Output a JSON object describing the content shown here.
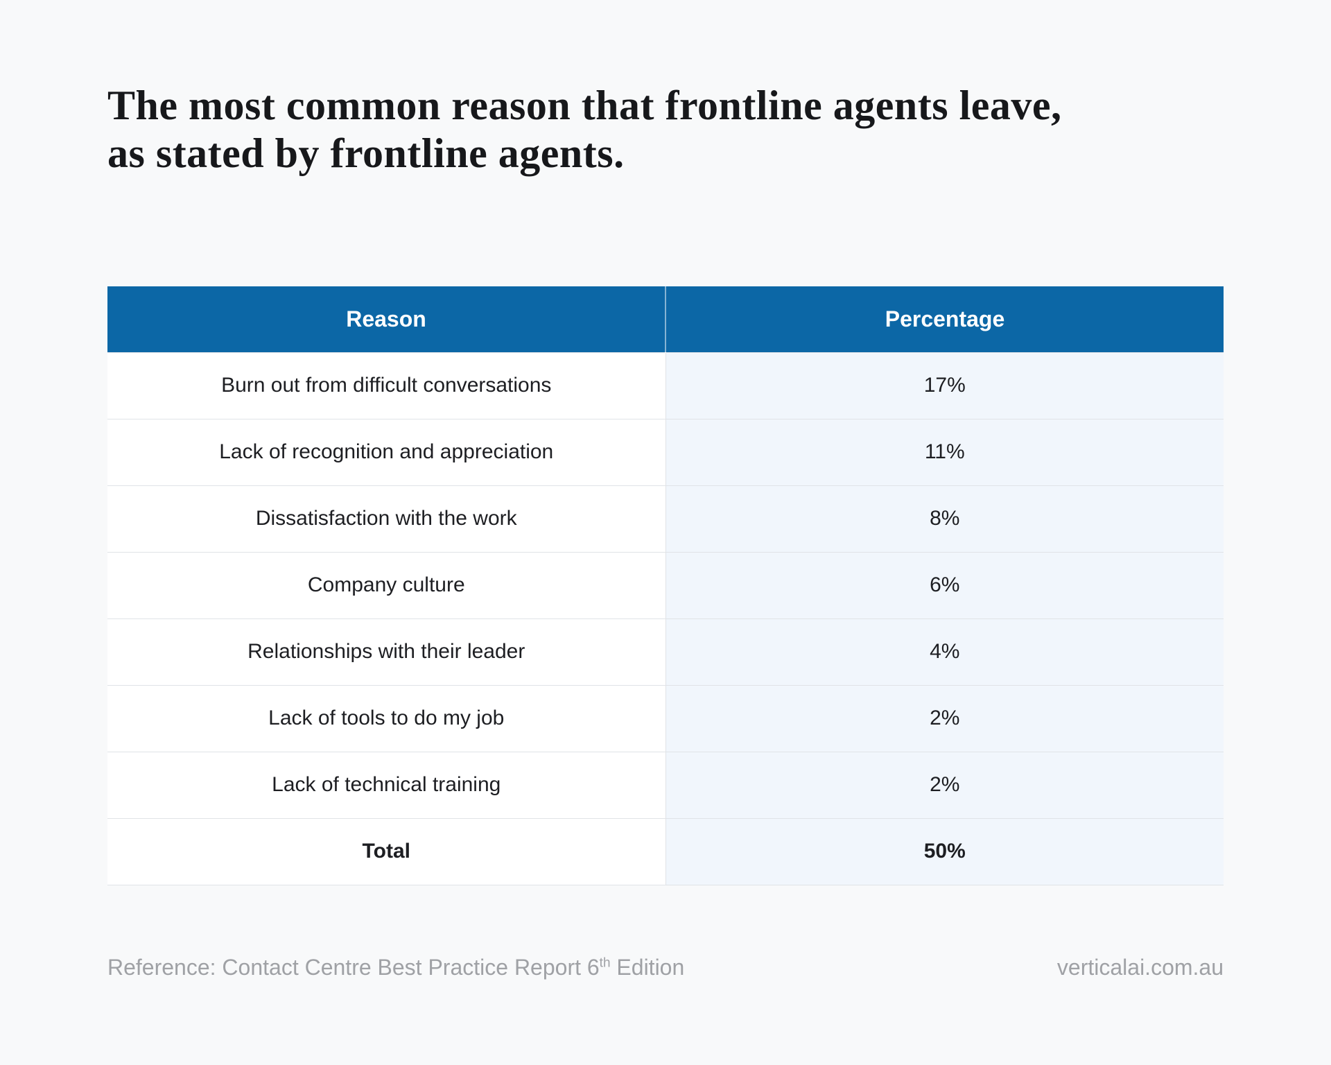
{
  "title": {
    "line1": "The most common reason that frontline agents leave,",
    "line2": "as stated by frontline agents."
  },
  "table": {
    "headers": [
      "Reason",
      "Percentage"
    ],
    "rows": [
      {
        "reason": "Burn out from difficult conversations",
        "percentage": "17%",
        "is_total": false
      },
      {
        "reason": "Lack of recognition and appreciation",
        "percentage": "11%",
        "is_total": false
      },
      {
        "reason": "Dissatisfaction with the work",
        "percentage": "8%",
        "is_total": false
      },
      {
        "reason": "Company culture",
        "percentage": "6%",
        "is_total": false
      },
      {
        "reason": "Relationships with their leader",
        "percentage": "4%",
        "is_total": false
      },
      {
        "reason": "Lack of tools to do my job",
        "percentage": "2%",
        "is_total": false
      },
      {
        "reason": "Lack of technical training",
        "percentage": "2%",
        "is_total": false
      },
      {
        "reason": "Total",
        "percentage": "50%",
        "is_total": true
      }
    ]
  },
  "footer": {
    "reference_prefix": "Reference: Contact Centre Best Practice Report 6",
    "reference_sup": "th",
    "reference_suffix": " Edition",
    "website": "verticalai.com.au"
  },
  "colors": {
    "header_blue": "#0c67a6",
    "percentage_cell_blue": "#f1f6fc",
    "page_background": "#f8f9fa",
    "row_border": "#e0e3e7",
    "footer_text": "#9fa1a5",
    "title_text": "#17181b",
    "body_text": "#1d1e22"
  },
  "chart_data": {
    "type": "table",
    "title": "The most common reason that frontline agents leave, as stated by frontline agents.",
    "columns": [
      "Reason",
      "Percentage"
    ],
    "categories": [
      "Burn out from difficult conversations",
      "Lack of recognition and appreciation",
      "Dissatisfaction with the work",
      "Company culture",
      "Relationships with their leader",
      "Lack of tools to do my job",
      "Lack of technical training"
    ],
    "values": [
      17,
      11,
      8,
      6,
      4,
      2,
      2
    ],
    "total": 50,
    "units": "%"
  }
}
